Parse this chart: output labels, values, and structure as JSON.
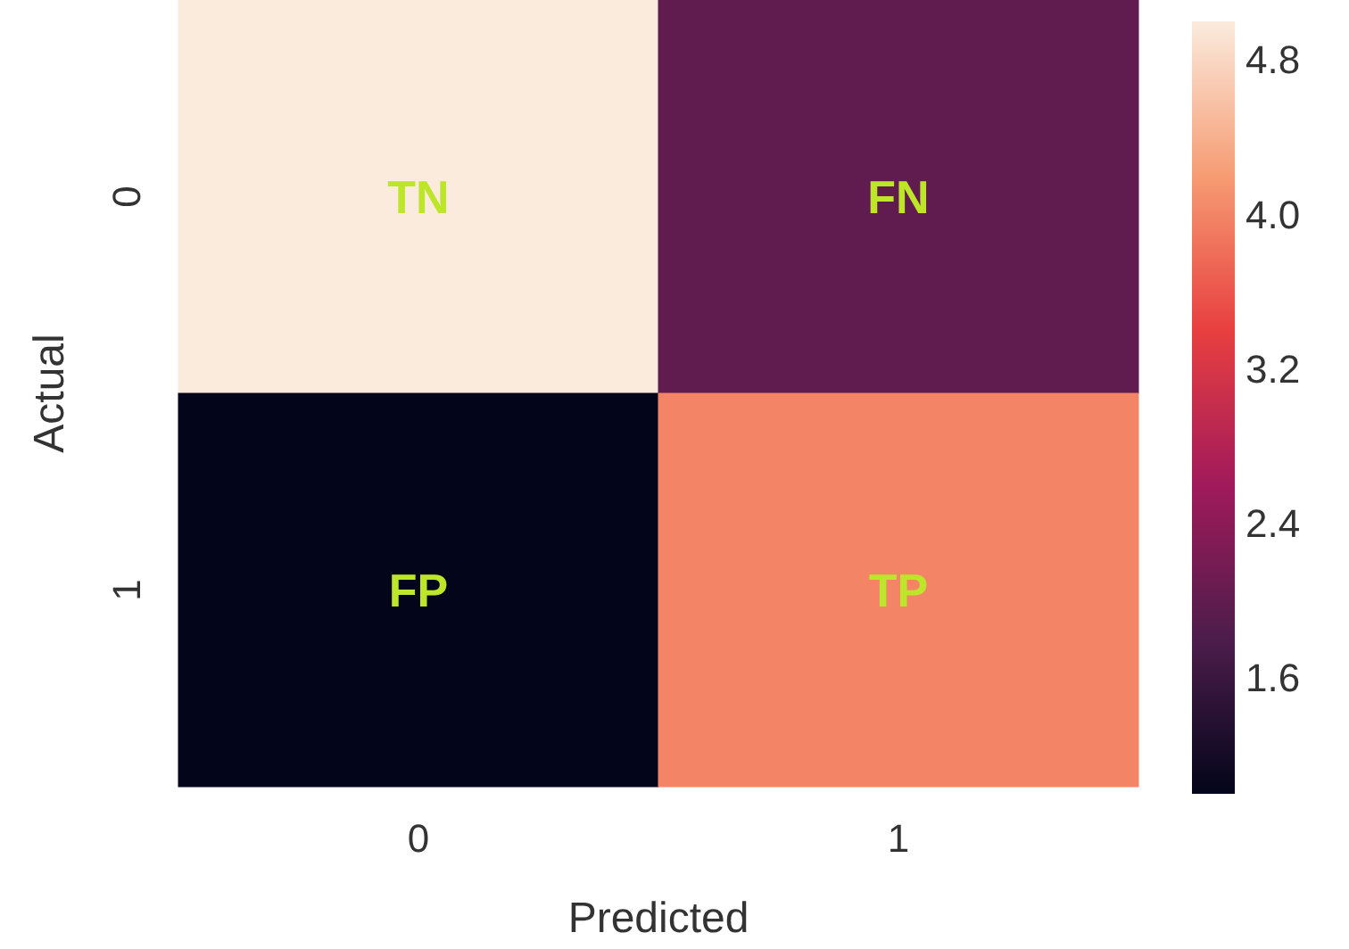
{
  "chart_data": {
    "type": "heatmap",
    "xlabel": "Predicted",
    "ylabel": "Actual",
    "categories": [
      "0",
      "1"
    ],
    "y_categories": [
      "0",
      "1"
    ],
    "cells": [
      [
        5,
        2
      ],
      [
        1,
        4
      ]
    ],
    "cell_labels": [
      [
        "TN",
        "FN"
      ],
      [
        "FP",
        "TP"
      ]
    ],
    "clim": [
      1,
      5
    ],
    "cticks": [
      1.6,
      2.4,
      3.2,
      {
        "value": 4,
        "label": "4.0"
      },
      4.8
    ]
  }
}
